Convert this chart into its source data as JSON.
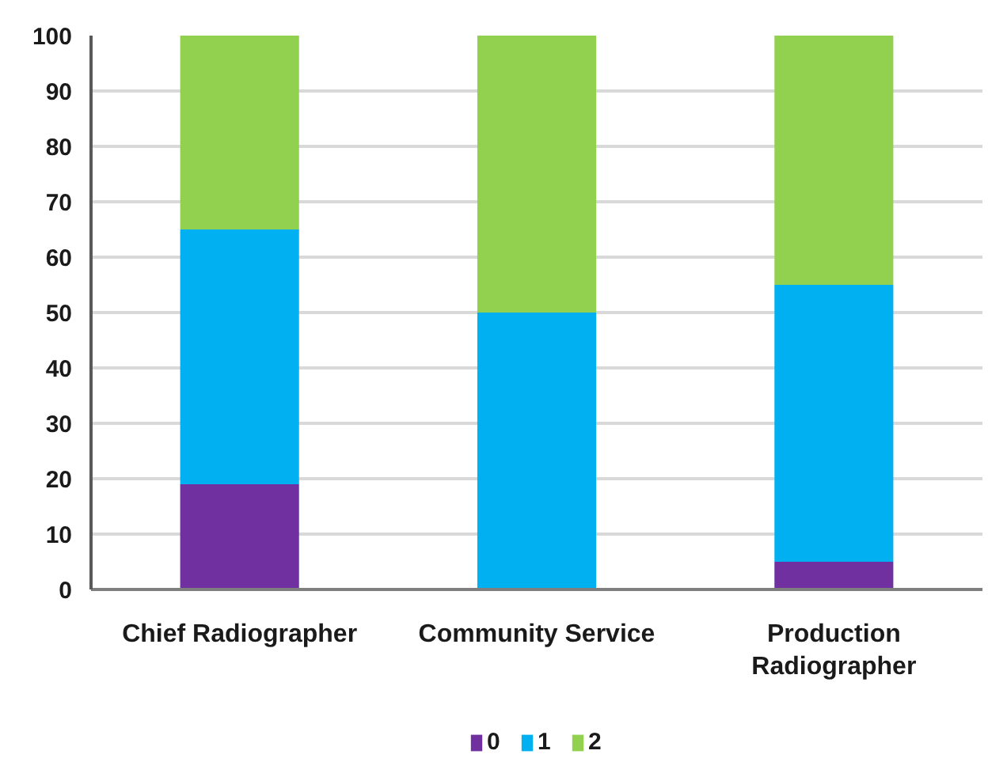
{
  "chart_data": {
    "type": "bar",
    "stacked": true,
    "categories": [
      "Chief Radiographer",
      "Community Service",
      "Production Radiographer"
    ],
    "series": [
      {
        "name": "0",
        "color": "#7030a0",
        "values": [
          19,
          0,
          5
        ]
      },
      {
        "name": "1",
        "color": "#00b0f0",
        "values": [
          46,
          50,
          50
        ]
      },
      {
        "name": "2",
        "color": "#92d050",
        "values": [
          35,
          50,
          45
        ]
      }
    ],
    "ylim": [
      0,
      100
    ],
    "yticks": [
      0,
      10,
      20,
      30,
      40,
      50,
      60,
      70,
      80,
      90,
      100
    ],
    "grid": "y",
    "legend": "bottom"
  }
}
